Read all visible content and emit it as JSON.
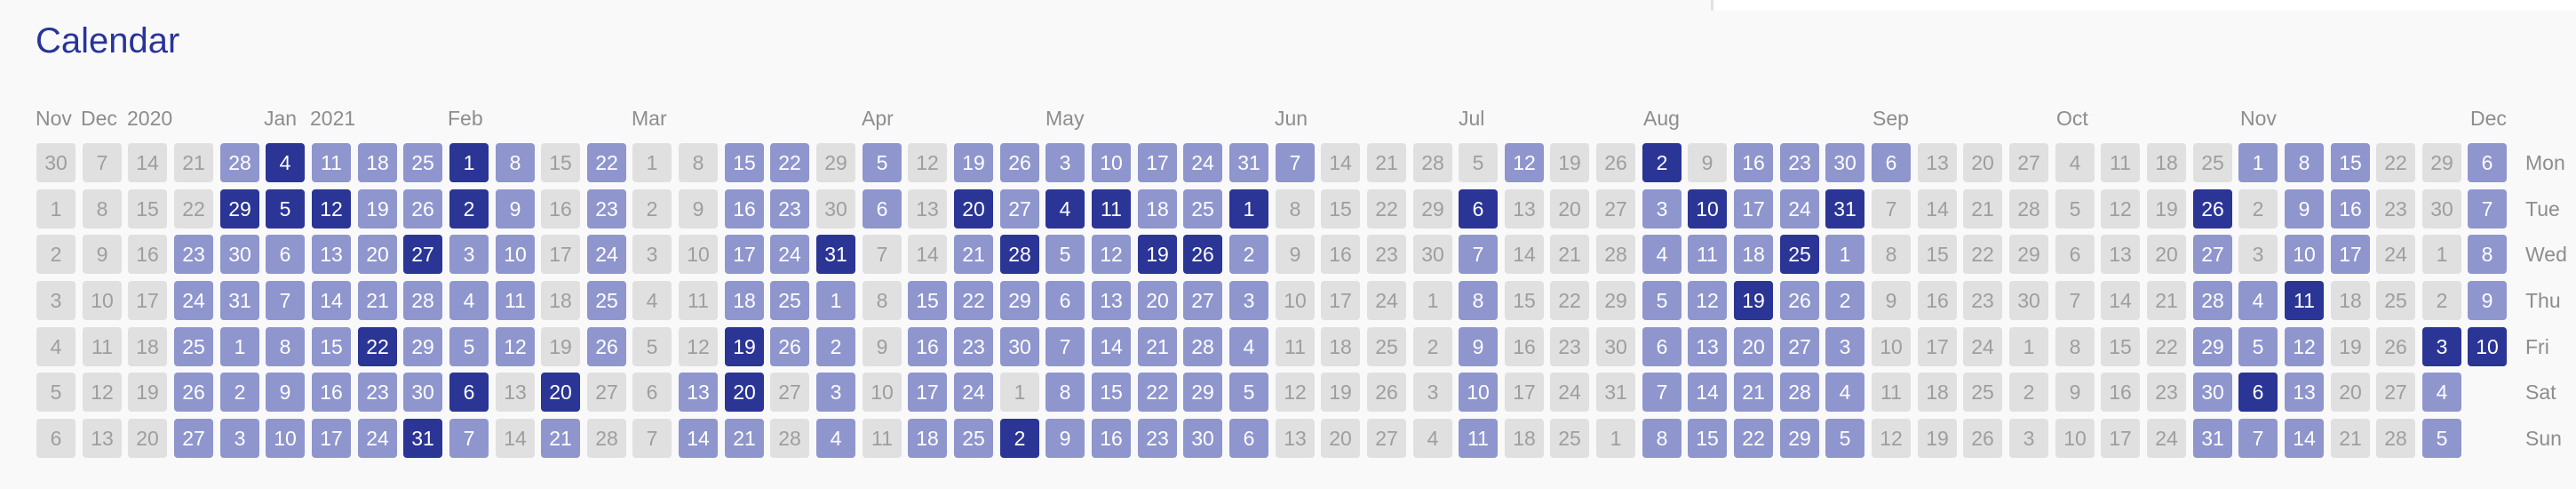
{
  "app": {
    "title": "Calendar"
  },
  "month_labels": [
    "Nov",
    "Dec",
    "2020",
    "Jan",
    "2021",
    "Feb",
    "Mar",
    "Apr",
    "May",
    "Jun",
    "Jul",
    "Aug",
    "Sep",
    "Oct",
    "Nov",
    "Dec"
  ],
  "weekday_labels": [
    "Mon",
    "Tue",
    "Wed",
    "Thu",
    "Fri",
    "Sat",
    "Sun"
  ],
  "activity_levels": {
    "0": "none",
    "1": "some",
    "2": "high"
  },
  "colors": {
    "none": "#e0e0e0",
    "some": "#8f96ce",
    "high": "#2b3596",
    "title": "#28349a"
  },
  "calendar": {
    "rows": [
      {
        "weekday": "Mon",
        "days": [
          30,
          7,
          14,
          21,
          28,
          4,
          11,
          18,
          25,
          1,
          8,
          15,
          22,
          1,
          8,
          15,
          22,
          29,
          5,
          12,
          19,
          26,
          3,
          10,
          17,
          24,
          31,
          7,
          14,
          21,
          28,
          5,
          12,
          19,
          26,
          2,
          9,
          16,
          23,
          30,
          6,
          13,
          20,
          27,
          4,
          11,
          18,
          25,
          1,
          8,
          15,
          22,
          29,
          6
        ],
        "levels": [
          0,
          0,
          0,
          0,
          1,
          2,
          1,
          1,
          1,
          2,
          1,
          0,
          1,
          0,
          0,
          1,
          1,
          0,
          1,
          0,
          1,
          1,
          1,
          1,
          1,
          1,
          1,
          1,
          0,
          0,
          0,
          0,
          1,
          0,
          0,
          2,
          0,
          1,
          1,
          1,
          1,
          0,
          0,
          0,
          0,
          0,
          0,
          0,
          1,
          1,
          1,
          0,
          0,
          1
        ]
      },
      {
        "weekday": "Tue",
        "days": [
          1,
          8,
          15,
          22,
          29,
          5,
          12,
          19,
          26,
          2,
          9,
          16,
          23,
          2,
          9,
          16,
          23,
          30,
          6,
          13,
          20,
          27,
          4,
          11,
          18,
          25,
          1,
          8,
          15,
          22,
          29,
          6,
          13,
          20,
          27,
          3,
          10,
          17,
          24,
          31,
          7,
          14,
          21,
          28,
          5,
          12,
          19,
          26,
          2,
          9,
          16,
          23,
          30,
          7
        ],
        "levels": [
          0,
          0,
          0,
          0,
          2,
          2,
          2,
          1,
          1,
          2,
          1,
          0,
          1,
          0,
          0,
          1,
          1,
          0,
          1,
          0,
          2,
          1,
          2,
          2,
          1,
          1,
          2,
          0,
          0,
          0,
          0,
          2,
          0,
          0,
          0,
          1,
          2,
          1,
          1,
          2,
          0,
          0,
          0,
          0,
          0,
          0,
          0,
          2,
          0,
          1,
          1,
          0,
          0,
          1
        ]
      },
      {
        "weekday": "Wed",
        "days": [
          2,
          9,
          16,
          23,
          30,
          6,
          13,
          20,
          27,
          3,
          10,
          17,
          24,
          3,
          10,
          17,
          24,
          31,
          7,
          14,
          21,
          28,
          5,
          12,
          19,
          26,
          2,
          9,
          16,
          23,
          30,
          7,
          14,
          21,
          28,
          4,
          11,
          18,
          25,
          1,
          8,
          15,
          22,
          29,
          6,
          13,
          20,
          27,
          3,
          10,
          17,
          24,
          1,
          8
        ],
        "levels": [
          0,
          0,
          0,
          1,
          1,
          1,
          1,
          1,
          2,
          1,
          1,
          0,
          1,
          0,
          0,
          1,
          1,
          2,
          0,
          0,
          1,
          2,
          1,
          1,
          2,
          2,
          1,
          0,
          0,
          0,
          0,
          1,
          0,
          0,
          0,
          1,
          1,
          1,
          2,
          1,
          0,
          0,
          0,
          0,
          0,
          0,
          0,
          1,
          0,
          1,
          1,
          0,
          0,
          1
        ]
      },
      {
        "weekday": "Thu",
        "days": [
          3,
          10,
          17,
          24,
          31,
          7,
          14,
          21,
          28,
          4,
          11,
          18,
          25,
          4,
          11,
          18,
          25,
          1,
          8,
          15,
          22,
          29,
          6,
          13,
          20,
          27,
          3,
          10,
          17,
          24,
          1,
          8,
          15,
          22,
          29,
          5,
          12,
          19,
          26,
          2,
          9,
          16,
          23,
          30,
          7,
          14,
          21,
          28,
          4,
          11,
          18,
          25,
          2,
          9
        ],
        "levels": [
          0,
          0,
          0,
          1,
          1,
          1,
          1,
          1,
          1,
          1,
          1,
          0,
          1,
          0,
          0,
          1,
          1,
          1,
          0,
          1,
          1,
          1,
          1,
          1,
          1,
          1,
          1,
          0,
          0,
          0,
          0,
          1,
          0,
          0,
          0,
          1,
          1,
          2,
          1,
          1,
          0,
          0,
          0,
          0,
          0,
          0,
          0,
          1,
          1,
          2,
          0,
          0,
          0,
          1
        ]
      },
      {
        "weekday": "Fri",
        "days": [
          4,
          11,
          18,
          25,
          1,
          8,
          15,
          22,
          29,
          5,
          12,
          19,
          26,
          5,
          12,
          19,
          26,
          2,
          9,
          16,
          23,
          30,
          7,
          14,
          21,
          28,
          4,
          11,
          18,
          25,
          2,
          9,
          16,
          23,
          30,
          6,
          13,
          20,
          27,
          3,
          10,
          17,
          24,
          1,
          8,
          15,
          22,
          29,
          5,
          12,
          19,
          26,
          3,
          10
        ],
        "levels": [
          0,
          0,
          0,
          1,
          1,
          1,
          1,
          2,
          1,
          1,
          1,
          0,
          1,
          0,
          0,
          2,
          1,
          1,
          0,
          1,
          1,
          1,
          1,
          1,
          1,
          1,
          1,
          0,
          0,
          0,
          0,
          1,
          0,
          0,
          0,
          1,
          1,
          1,
          1,
          1,
          0,
          0,
          0,
          0,
          0,
          0,
          0,
          1,
          1,
          1,
          0,
          0,
          2,
          2
        ]
      },
      {
        "weekday": "Sat",
        "days": [
          5,
          12,
          19,
          26,
          2,
          9,
          16,
          23,
          30,
          6,
          13,
          20,
          27,
          6,
          13,
          20,
          27,
          3,
          10,
          17,
          24,
          1,
          8,
          15,
          22,
          29,
          5,
          12,
          19,
          26,
          3,
          10,
          17,
          24,
          31,
          7,
          14,
          21,
          28,
          4,
          11,
          18,
          25,
          2,
          9,
          16,
          23,
          30,
          6,
          13,
          20,
          27,
          4
        ],
        "levels": [
          0,
          0,
          0,
          1,
          1,
          1,
          1,
          1,
          1,
          2,
          0,
          2,
          0,
          0,
          1,
          2,
          0,
          1,
          0,
          1,
          1,
          0,
          1,
          1,
          1,
          1,
          1,
          0,
          0,
          0,
          0,
          1,
          0,
          0,
          0,
          1,
          1,
          1,
          1,
          1,
          0,
          0,
          0,
          0,
          0,
          0,
          0,
          1,
          2,
          1,
          0,
          0,
          1
        ]
      },
      {
        "weekday": "Sun",
        "days": [
          6,
          13,
          20,
          27,
          3,
          10,
          17,
          24,
          31,
          7,
          14,
          21,
          28,
          7,
          14,
          21,
          28,
          4,
          11,
          18,
          25,
          2,
          9,
          16,
          23,
          30,
          6,
          13,
          20,
          27,
          4,
          11,
          18,
          25,
          1,
          8,
          15,
          22,
          29,
          5,
          12,
          19,
          26,
          3,
          10,
          17,
          24,
          31,
          7,
          14,
          21,
          28,
          5
        ],
        "levels": [
          0,
          0,
          0,
          1,
          1,
          1,
          1,
          1,
          2,
          1,
          0,
          1,
          0,
          0,
          1,
          1,
          0,
          1,
          0,
          1,
          1,
          2,
          1,
          1,
          1,
          1,
          1,
          0,
          0,
          0,
          0,
          1,
          0,
          0,
          0,
          1,
          1,
          1,
          1,
          1,
          0,
          0,
          0,
          0,
          0,
          0,
          0,
          1,
          1,
          1,
          0,
          0,
          1
        ]
      }
    ]
  }
}
